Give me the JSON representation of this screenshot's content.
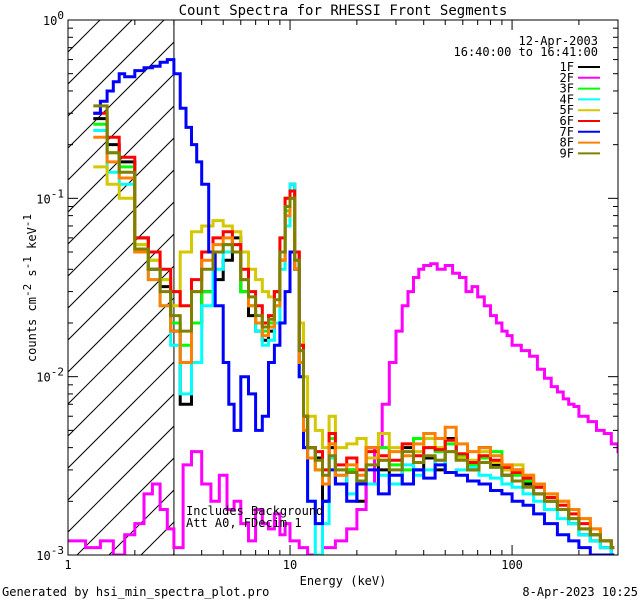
{
  "chart_data": {
    "type": "line",
    "title": "Count Spectra for RHESSI Front Segments",
    "xlabel": "Energy (keV)",
    "ylabel_main": "counts cm",
    "ylabel_sup1": "-2",
    "ylabel_mid": " s",
    "ylabel_sup2": "-1",
    "ylabel_end": " keV",
    "ylabel_sup3": "-1",
    "x_scale": "log",
    "y_scale": "log",
    "xlim": [
      1,
      300
    ],
    "ylim": [
      0.001,
      1
    ],
    "x_ticks": [
      {
        "value": 1,
        "label": "1"
      },
      {
        "value": 10,
        "label": "10"
      },
      {
        "value": 100,
        "label": "100"
      }
    ],
    "y_ticks": [
      {
        "value": 1,
        "base": "10",
        "exp": "0"
      },
      {
        "value": 0.1,
        "base": "10",
        "exp": "-1"
      },
      {
        "value": 0.01,
        "base": "10",
        "exp": "-2"
      },
      {
        "value": 0.001,
        "base": "10",
        "exp": "-3"
      }
    ],
    "date": "12-Apr-2003",
    "time_range": "16:40:00 to 16:41:00",
    "attenuator_cutoff_kev": 3,
    "annotations": [
      "Includes Background",
      "Att A0, FDecim 1"
    ],
    "series": [
      {
        "name": "1F",
        "color": "#000000",
        "x": [
          1.3,
          1.5,
          1.7,
          2.0,
          2.3,
          2.6,
          2.9,
          3.2,
          3.6,
          4.0,
          4.5,
          5.0,
          5.5,
          6.0,
          6.5,
          7.0,
          7.5,
          8.0,
          8.5,
          9.0,
          9.5,
          10.0,
          10.5,
          11.0,
          11.5,
          12.0,
          13,
          14,
          15,
          16,
          18,
          20,
          22,
          25,
          28,
          32,
          36,
          40,
          45,
          50,
          56,
          63,
          71,
          80,
          90,
          100,
          112,
          125,
          140,
          160,
          180,
          200,
          225,
          250,
          280
        ],
        "y": [
          0.28,
          0.2,
          0.16,
          0.06,
          0.04,
          0.032,
          0.018,
          0.007,
          0.02,
          0.03,
          0.035,
          0.045,
          0.06,
          0.03,
          0.022,
          0.018,
          0.016,
          0.018,
          0.03,
          0.045,
          0.09,
          0.12,
          0.05,
          0.015,
          0.006,
          0.004,
          0.0035,
          0.002,
          0.004,
          0.0025,
          0.003,
          0.002,
          0.004,
          0.003,
          0.0025,
          0.004,
          0.003,
          0.0035,
          0.003,
          0.0045,
          0.0035,
          0.003,
          0.004,
          0.0032,
          0.0028,
          0.003,
          0.0025,
          0.0022,
          0.002,
          0.0018,
          0.0015,
          0.0013,
          0.0012,
          0.0011,
          0.001
        ]
      },
      {
        "name": "2F",
        "color": "#ff00ff",
        "x": [
          1.0,
          1.2,
          1.4,
          1.6,
          1.8,
          2.0,
          2.2,
          2.4,
          2.6,
          2.8,
          3.0,
          3.3,
          3.6,
          4.0,
          4.4,
          4.8,
          5.2,
          5.6,
          6.0,
          6.5,
          7.0,
          7.5,
          8.0,
          8.5,
          9.0,
          9.5,
          10,
          11,
          12,
          14,
          16,
          18,
          20,
          22,
          24,
          26,
          28,
          30,
          32,
          34,
          36,
          38,
          40,
          43,
          46,
          50,
          54,
          58,
          62,
          66,
          70,
          75,
          80,
          85,
          90,
          95,
          100,
          110,
          120,
          130,
          140,
          150,
          160,
          170,
          180,
          190,
          200,
          220,
          240,
          260,
          280,
          300
        ],
        "y": [
          0.0012,
          0.0011,
          0.0012,
          0.001,
          0.0013,
          0.0015,
          0.0022,
          0.0025,
          0.0018,
          0.0014,
          0.0011,
          0.0032,
          0.0038,
          0.0025,
          0.002,
          0.0028,
          0.0018,
          0.002,
          0.0015,
          0.0012,
          0.0018,
          0.0015,
          0.0014,
          0.0017,
          0.0013,
          0.0015,
          0.0012,
          0.0011,
          0.001,
          0.0011,
          0.0012,
          0.0014,
          0.0018,
          0.0025,
          0.004,
          0.007,
          0.012,
          0.018,
          0.025,
          0.03,
          0.036,
          0.04,
          0.042,
          0.043,
          0.04,
          0.042,
          0.038,
          0.036,
          0.03,
          0.032,
          0.028,
          0.025,
          0.022,
          0.02,
          0.018,
          0.017,
          0.015,
          0.014,
          0.013,
          0.011,
          0.0098,
          0.0088,
          0.0082,
          0.0075,
          0.007,
          0.0068,
          0.006,
          0.0056,
          0.005,
          0.0048,
          0.0042,
          0.0038
        ]
      },
      {
        "name": "3F",
        "color": "#00ff00",
        "x": [
          1.3,
          1.5,
          1.7,
          2.0,
          2.3,
          2.6,
          2.9,
          3.2,
          3.6,
          4.0,
          4.5,
          5.0,
          5.5,
          6.0,
          6.5,
          7.0,
          7.5,
          8.0,
          8.5,
          9.0,
          9.5,
          10.0,
          10.5,
          11.0,
          11.5,
          12.0,
          13,
          14,
          15,
          16,
          18,
          20,
          22,
          25,
          28,
          32,
          36,
          40,
          45,
          50,
          56,
          63,
          71,
          80,
          90,
          100,
          112,
          125,
          140,
          160,
          180,
          200,
          225,
          250,
          280
        ],
        "y": [
          0.26,
          0.18,
          0.15,
          0.055,
          0.045,
          0.035,
          0.02,
          0.015,
          0.02,
          0.03,
          0.05,
          0.055,
          0.05,
          0.03,
          0.025,
          0.02,
          0.018,
          0.02,
          0.025,
          0.05,
          0.085,
          0.1,
          0.045,
          0.012,
          0.005,
          0.004,
          0.003,
          0.0025,
          0.0045,
          0.003,
          0.003,
          0.0025,
          0.0035,
          0.004,
          0.0032,
          0.003,
          0.0045,
          0.004,
          0.0038,
          0.0042,
          0.0036,
          0.0032,
          0.0035,
          0.0038,
          0.003,
          0.0028,
          0.0026,
          0.0024,
          0.002,
          0.0018,
          0.0016,
          0.0014,
          0.0013,
          0.0012,
          0.0011
        ]
      },
      {
        "name": "4F",
        "color": "#00ffff",
        "x": [
          1.3,
          1.5,
          1.7,
          2.0,
          2.3,
          2.6,
          2.9,
          3.2,
          3.6,
          4.0,
          4.5,
          5.0,
          5.5,
          6.0,
          6.5,
          7.0,
          7.5,
          8.0,
          8.5,
          9.0,
          9.5,
          10.0,
          10.5,
          11.0,
          11.5,
          12.0,
          13,
          14,
          15,
          16,
          18,
          20,
          22,
          25,
          28,
          32,
          36,
          40,
          45,
          50,
          56,
          63,
          71,
          80,
          90,
          100,
          112,
          125,
          140,
          160,
          180,
          200,
          225,
          250,
          280
        ],
        "y": [
          0.24,
          0.14,
          0.12,
          0.05,
          0.035,
          0.025,
          0.015,
          0.008,
          0.012,
          0.025,
          0.04,
          0.05,
          0.055,
          0.035,
          0.025,
          0.018,
          0.015,
          0.016,
          0.02,
          0.04,
          0.07,
          0.12,
          0.04,
          0.01,
          0.004,
          0.002,
          0.001,
          0.0015,
          0.0035,
          0.0028,
          0.0022,
          0.003,
          0.0025,
          0.0028,
          0.0025,
          0.0032,
          0.0028,
          0.003,
          0.0034,
          0.0029,
          0.003,
          0.0031,
          0.0028,
          0.0027,
          0.0025,
          0.0024,
          0.0022,
          0.002,
          0.0018,
          0.0016,
          0.0015,
          0.0013,
          0.0012,
          0.0011,
          0.001
        ]
      },
      {
        "name": "5F",
        "color": "#d4c800",
        "x": [
          1.3,
          1.5,
          1.7,
          2.0,
          2.3,
          2.6,
          2.9,
          3.2,
          3.6,
          4.0,
          4.5,
          5.0,
          5.5,
          6.0,
          6.5,
          7.0,
          7.5,
          8.0,
          8.5,
          9.0,
          9.5,
          10.0,
          10.5,
          11.0,
          11.5,
          12.0,
          13,
          14,
          15,
          16,
          18,
          20,
          22,
          25,
          28,
          32,
          36,
          40,
          45,
          50,
          56,
          63,
          71,
          80,
          90,
          100,
          112,
          125,
          140,
          160,
          180,
          200,
          225,
          250,
          280
        ],
        "y": [
          0.15,
          0.12,
          0.1,
          0.055,
          0.045,
          0.035,
          0.025,
          0.05,
          0.065,
          0.07,
          0.075,
          0.07,
          0.065,
          0.05,
          0.04,
          0.035,
          0.03,
          0.028,
          0.03,
          0.05,
          0.1,
          0.11,
          0.05,
          0.02,
          0.01,
          0.006,
          0.005,
          0.004,
          0.006,
          0.004,
          0.0042,
          0.0045,
          0.0035,
          0.0048,
          0.004,
          0.0042,
          0.0038,
          0.0045,
          0.004,
          0.0038,
          0.0035,
          0.0034,
          0.0038,
          0.0033,
          0.003,
          0.0032,
          0.0028,
          0.0025,
          0.0022,
          0.002,
          0.0018,
          0.0016,
          0.0014,
          0.0012,
          0.0011
        ]
      },
      {
        "name": "6F",
        "color": "#ff0000",
        "x": [
          1.3,
          1.5,
          1.7,
          2.0,
          2.3,
          2.6,
          2.9,
          3.2,
          3.6,
          4.0,
          4.5,
          5.0,
          5.5,
          6.0,
          6.5,
          7.0,
          7.5,
          8.0,
          8.5,
          9.0,
          9.5,
          10.0,
          10.5,
          11.0,
          11.5,
          12.0,
          13,
          14,
          15,
          16,
          18,
          20,
          22,
          25,
          28,
          32,
          36,
          40,
          45,
          50,
          56,
          63,
          71,
          80,
          90,
          100,
          112,
          125,
          140,
          160,
          180,
          200,
          225,
          250,
          280
        ],
        "y": [
          0.3,
          0.22,
          0.17,
          0.06,
          0.05,
          0.04,
          0.03,
          0.025,
          0.035,
          0.05,
          0.06,
          0.065,
          0.055,
          0.04,
          0.03,
          0.025,
          0.02,
          0.022,
          0.03,
          0.06,
          0.1,
          0.11,
          0.05,
          0.015,
          0.006,
          0.004,
          0.0038,
          0.003,
          0.0048,
          0.0032,
          0.0035,
          0.003,
          0.0038,
          0.0036,
          0.0034,
          0.0042,
          0.0036,
          0.004,
          0.0039,
          0.0044,
          0.0037,
          0.0033,
          0.0036,
          0.0034,
          0.0031,
          0.0029,
          0.0027,
          0.0024,
          0.0021,
          0.0019,
          0.0017,
          0.0015,
          0.0013,
          0.0012,
          0.0011
        ]
      },
      {
        "name": "7F",
        "color": "#0000ff",
        "x": [
          1.3,
          1.4,
          1.5,
          1.6,
          1.7,
          1.8,
          2.0,
          2.2,
          2.4,
          2.6,
          2.8,
          3.0,
          3.2,
          3.4,
          3.6,
          3.8,
          4.0,
          4.3,
          4.6,
          5.0,
          5.3,
          5.6,
          6.0,
          6.5,
          7.0,
          7.5,
          8.0,
          8.5,
          9.0,
          9.5,
          10.0,
          10.5,
          11.0,
          11.5,
          12.0,
          13,
          14,
          15,
          16,
          18,
          20,
          22,
          25,
          28,
          32,
          36,
          40,
          45,
          50,
          56,
          63,
          71,
          80,
          90,
          100,
          112,
          125,
          140,
          160,
          180,
          200,
          225,
          250,
          280
        ],
        "y": [
          0.3,
          0.35,
          0.4,
          0.45,
          0.5,
          0.48,
          0.52,
          0.54,
          0.55,
          0.58,
          0.6,
          0.5,
          0.32,
          0.25,
          0.2,
          0.16,
          0.12,
          0.05,
          0.025,
          0.012,
          0.007,
          0.005,
          0.01,
          0.008,
          0.005,
          0.006,
          0.012,
          0.015,
          0.02,
          0.03,
          0.05,
          0.04,
          0.01,
          0.004,
          0.002,
          0.0015,
          0.002,
          0.003,
          0.0025,
          0.002,
          0.0025,
          0.003,
          0.0022,
          0.0028,
          0.0025,
          0.003,
          0.0027,
          0.0032,
          0.0029,
          0.0028,
          0.0026,
          0.0025,
          0.0023,
          0.0022,
          0.002,
          0.0019,
          0.0017,
          0.0015,
          0.0013,
          0.0012,
          0.0011,
          0.001,
          0.001,
          0.001
        ]
      },
      {
        "name": "8F",
        "color": "#ff8000",
        "x": [
          1.3,
          1.5,
          1.7,
          2.0,
          2.3,
          2.6,
          2.9,
          3.2,
          3.6,
          4.0,
          4.5,
          5.0,
          5.5,
          6.0,
          6.5,
          7.0,
          7.5,
          8.0,
          8.5,
          9.0,
          9.5,
          10.0,
          10.5,
          11.0,
          11.5,
          12.0,
          13,
          14,
          15,
          16,
          18,
          20,
          22,
          25,
          28,
          32,
          36,
          40,
          45,
          50,
          56,
          63,
          71,
          80,
          90,
          100,
          112,
          125,
          140,
          160,
          180,
          200,
          225,
          250,
          280
        ],
        "y": [
          0.22,
          0.16,
          0.13,
          0.05,
          0.035,
          0.025,
          0.018,
          0.012,
          0.03,
          0.045,
          0.055,
          0.06,
          0.05,
          0.035,
          0.025,
          0.02,
          0.017,
          0.019,
          0.025,
          0.045,
          0.08,
          0.1,
          0.04,
          0.012,
          0.005,
          0.0035,
          0.003,
          0.0025,
          0.0042,
          0.0028,
          0.0032,
          0.0028,
          0.004,
          0.0034,
          0.0038,
          0.0036,
          0.0042,
          0.0048,
          0.0045,
          0.0052,
          0.0042,
          0.0038,
          0.004,
          0.0036,
          0.0032,
          0.003,
          0.0028,
          0.0025,
          0.0022,
          0.002,
          0.0018,
          0.0016,
          0.0014,
          0.0012,
          0.0011
        ]
      },
      {
        "name": "9F",
        "color": "#808000",
        "x": [
          1.3,
          1.5,
          1.7,
          2.0,
          2.3,
          2.6,
          2.9,
          3.2,
          3.6,
          4.0,
          4.5,
          5.0,
          5.5,
          6.0,
          6.5,
          7.0,
          7.5,
          8.0,
          8.5,
          9.0,
          9.5,
          10.0,
          10.5,
          11.0,
          11.5,
          12.0,
          13,
          14,
          15,
          16,
          18,
          20,
          22,
          25,
          28,
          32,
          36,
          40,
          45,
          50,
          56,
          63,
          71,
          80,
          90,
          100,
          112,
          125,
          140,
          160,
          180,
          200,
          225,
          250,
          280
        ],
        "y": [
          0.33,
          0.18,
          0.14,
          0.052,
          0.04,
          0.03,
          0.022,
          0.018,
          0.03,
          0.04,
          0.05,
          0.055,
          0.05,
          0.035,
          0.028,
          0.022,
          0.019,
          0.021,
          0.027,
          0.05,
          0.09,
          0.1,
          0.045,
          0.014,
          0.006,
          0.004,
          0.0034,
          0.0028,
          0.0036,
          0.003,
          0.0029,
          0.0026,
          0.0032,
          0.0034,
          0.003,
          0.0038,
          0.0033,
          0.0036,
          0.0034,
          0.0038,
          0.0034,
          0.003,
          0.0033,
          0.0031,
          0.0028,
          0.0026,
          0.0024,
          0.0022,
          0.002,
          0.0018,
          0.0016,
          0.0014,
          0.0013,
          0.0012,
          0.0011
        ]
      }
    ]
  },
  "footer": {
    "left": "Generated by hsi_min_spectra_plot.pro",
    "right": "8-Apr-2023 10:25"
  }
}
